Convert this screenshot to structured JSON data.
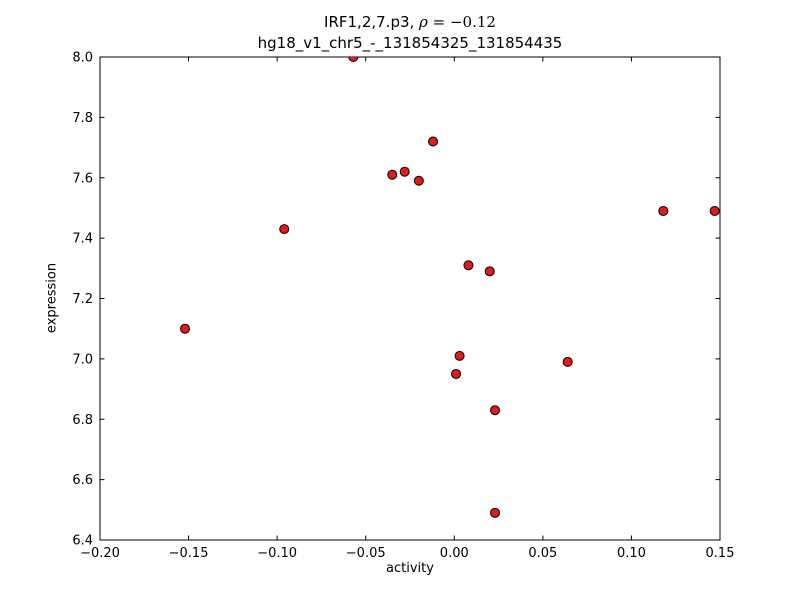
{
  "figure": {
    "title_prefix": "IRF1,2,7.p3, ",
    "title_rho": "ρ",
    "title_rest": " = −0.12",
    "subtitle": "hg18_v1_chr5_-_131854325_131854435",
    "xlabel": "activity",
    "ylabel": "expression"
  },
  "chart_data": {
    "type": "scatter",
    "title": "IRF1,2,7.p3, ρ = −0.12",
    "subtitle": "hg18_v1_chr5_-_131854325_131854435",
    "xlabel": "activity",
    "ylabel": "expression",
    "xlim": [
      -0.2,
      0.15
    ],
    "ylim": [
      6.4,
      8.0
    ],
    "x_ticks": [
      -0.2,
      -0.15,
      -0.1,
      -0.05,
      0.0,
      0.05,
      0.1,
      0.15
    ],
    "x_tick_labels": [
      "−0.20",
      "−0.15",
      "−0.10",
      "−0.05",
      "0.00",
      "0.05",
      "0.10",
      "0.15"
    ],
    "y_ticks": [
      6.4,
      6.6,
      6.8,
      7.0,
      7.2,
      7.4,
      7.6,
      7.8,
      8.0
    ],
    "y_tick_labels": [
      "6.4",
      "6.6",
      "6.8",
      "7.0",
      "7.2",
      "7.4",
      "7.6",
      "7.8",
      "8.0"
    ],
    "grid": false,
    "legend": null,
    "marker_color": "#e01b1b",
    "marker_edge_color": "#000000",
    "points": [
      [
        -0.152,
        7.1
      ],
      [
        -0.096,
        7.43
      ],
      [
        -0.057,
        8.0
      ],
      [
        -0.035,
        7.61
      ],
      [
        -0.028,
        7.62
      ],
      [
        -0.02,
        7.59
      ],
      [
        -0.012,
        7.72
      ],
      [
        0.008,
        7.31
      ],
      [
        0.02,
        7.29
      ],
      [
        0.003,
        7.01
      ],
      [
        0.001,
        6.95
      ],
      [
        0.023,
        6.83
      ],
      [
        0.023,
        6.49
      ],
      [
        0.064,
        6.99
      ],
      [
        0.118,
        7.49
      ],
      [
        0.147,
        7.49
      ]
    ]
  }
}
